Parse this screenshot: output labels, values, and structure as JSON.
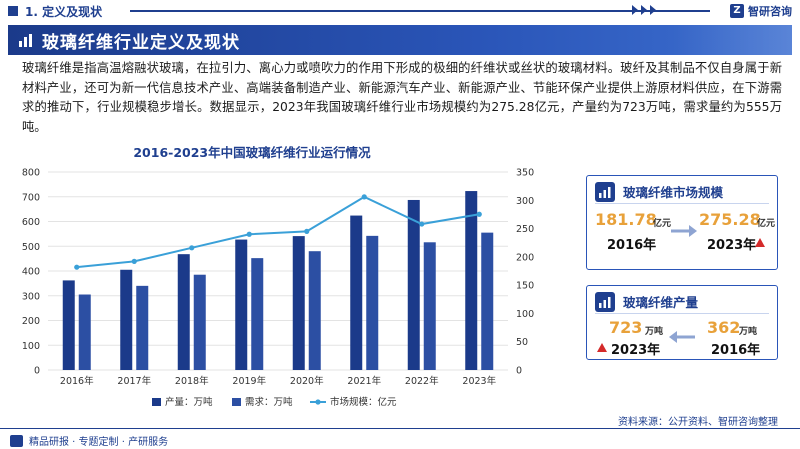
{
  "header": {
    "section": "1. 定义及现状",
    "brand": "智研咨询"
  },
  "banner": {
    "title": "玻璃纤维行业定义及现状"
  },
  "intro": {
    "text": "玻璃纤维是指高温熔融状玻璃，在拉引力、离心力或喷吹力的作用下形成的极细的纤维状或丝状的玻璃材料。玻纤及其制品不仅自身属于新材料产业，还可为新一代信息技术产业、高端装备制造产业、新能源汽车产业、新能源产业、节能环保产业提供上游原材料供应，在下游需求的推动下，行业规模稳步增长。数据显示，2023年我国玻璃纤维行业市场规模约为275.28亿元，产量约为723万吨，需求量约为555万吨。"
  },
  "chart_data": {
    "type": "bar",
    "title": "2016-2023年中国玻璃纤维行业运行情况",
    "categories": [
      "2016年",
      "2017年",
      "2018年",
      "2019年",
      "2020年",
      "2021年",
      "2022年",
      "2023年"
    ],
    "series": [
      {
        "name": "产量：万吨",
        "kind": "bar",
        "axis": "left",
        "color": "#1b3a8a",
        "values": [
          362,
          405,
          468,
          527,
          541,
          624,
          687,
          723
        ]
      },
      {
        "name": "需求：万吨",
        "kind": "bar",
        "axis": "left",
        "color": "#2c4fa3",
        "values": [
          305,
          340,
          385,
          452,
          480,
          542,
          516,
          555
        ]
      },
      {
        "name": "市场规模：亿元",
        "kind": "line",
        "axis": "right",
        "color": "#3aa0d8",
        "values": [
          181.78,
          192,
          216,
          240,
          245,
          306,
          258,
          275.28
        ]
      }
    ],
    "ylim_left": [
      0,
      800
    ],
    "yticks_left": [
      0,
      100,
      200,
      300,
      400,
      500,
      600,
      700,
      800
    ],
    "ylim_right": [
      0,
      350
    ],
    "yticks_right": [
      0,
      50,
      100,
      150,
      200,
      250,
      300,
      350
    ],
    "grid": true,
    "legend": "bottom"
  },
  "cards": [
    {
      "title": "玻璃纤维市场规模",
      "left": {
        "value": "181.78",
        "unit": "亿元",
        "year": "2016年"
      },
      "right": {
        "value": "275.28",
        "unit": "亿元",
        "year": "2023年"
      }
    },
    {
      "title": "玻璃纤维产量",
      "left": {
        "value": "723",
        "unit": "万吨",
        "year": "2023年"
      },
      "right": {
        "value": "362",
        "unit": "万吨",
        "year": "2016年"
      }
    }
  ],
  "source": "资料来源：公开资料、智研咨询整理",
  "footer": {
    "text": "精品研报 · 专题定制 · 产研服务"
  },
  "colors": {
    "primary": "#1f3f8f",
    "accent": "#e8a13a",
    "up": "#d42a2a"
  }
}
